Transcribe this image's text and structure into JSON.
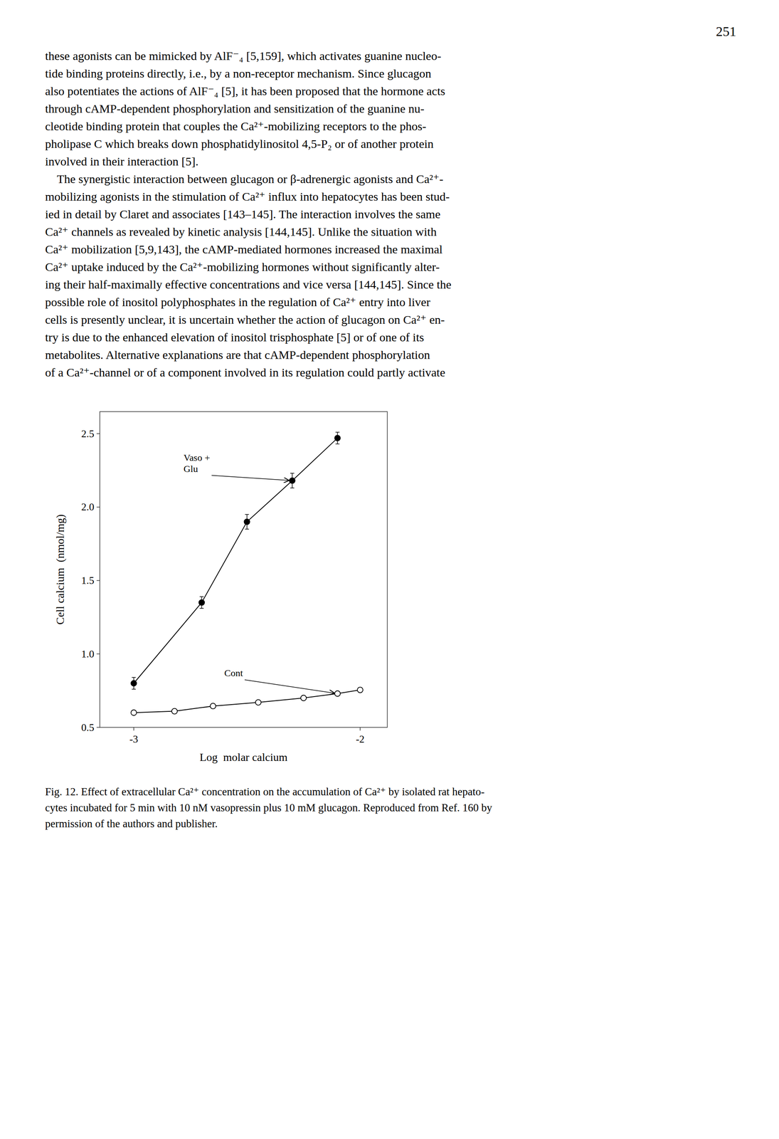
{
  "page_number": "251",
  "body_text": [
    "these agonists can be mimicked by AlF⁻₄ [5,159], which activates guanine nucleo-",
    "tide binding proteins directly, i.e., by a non-receptor mechanism. Since glucagon",
    "also potentiates the actions of AlF⁻₄ [5], it has been proposed that the hormone acts",
    "through cAMP-dependent phosphorylation and sensitization of the guanine nu-",
    "cleotide binding protein that couples the Ca²⁺-mobilizing receptors to the phos-",
    "pholipase C which breaks down phosphatidylinositol 4,5-P₂ or of another protein",
    "involved in their interaction [5].",
    "    The synergistic interaction between glucagon or β-adrenergic agonists and Ca²⁺-",
    "mobilizing agonists in the stimulation of Ca²⁺ influx into hepatocytes has been stud-",
    "ied in detail by Claret and associates [143–145]. The interaction involves the same",
    "Ca²⁺ channels as revealed by kinetic analysis [144,145]. Unlike the situation with",
    "Ca²⁺ mobilization [5,9,143], the cAMP-mediated hormones increased the maximal",
    "Ca²⁺ uptake induced by the Ca²⁺-mobilizing hormones without significantly alter-",
    "ing their half-maximally effective concentrations and vice versa [144,145]. Since the",
    "possible role of inositol polyphosphates in the regulation of Ca²⁺ entry into liver",
    "cells is presently unclear, it is uncertain whether the action of glucagon on Ca²⁺ en-",
    "try is due to the enhanced elevation of inositol trisphosphate [5] or of one of its",
    "metabolites. Alternative explanations are that cAMP-dependent phosphorylation",
    "of a Ca²⁺-channel or of a component involved in its regulation could partly activate"
  ],
  "caption": [
    "Fig. 12. Effect of extracellular Ca²⁺ concentration on the accumulation of Ca²⁺ by isolated rat hepato-",
    "cytes incubated for 5 min with 10 nM vasopressin plus 10 mM glucagon. Reproduced from Ref. 160 by",
    "permission of the authors and publisher."
  ],
  "chart_data": {
    "type": "line",
    "xlabel": "Log  molar calcium",
    "ylabel": "Cell calcium  (nmol/mg)",
    "xlim": [
      -3.15,
      -1.88
    ],
    "ylim": [
      0.5,
      2.65
    ],
    "xticks": [
      -3,
      -2
    ],
    "yticks": [
      0.5,
      {
        "value": 1.0,
        "label": "1.0"
      },
      1.5,
      {
        "value": 2.0,
        "label": "2.0"
      },
      2.5
    ],
    "grid": false,
    "series": [
      {
        "x": [
          -3.0,
          -2.7,
          -2.5,
          -2.3,
          -2.1
        ],
        "values": [
          0.8,
          1.35,
          1.9,
          2.18,
          2.47
        ],
        "errors": [
          0.04,
          0.04,
          0.05,
          0.05,
          0.04
        ],
        "color": "#000000",
        "marker": "filled-circle",
        "line_style": "solid"
      },
      {
        "x": [
          -3.0,
          -2.82,
          -2.65,
          -2.45,
          -2.25,
          -2.1,
          -2.0
        ],
        "values": [
          0.6,
          0.61,
          0.645,
          0.67,
          0.7,
          0.73,
          0.755
        ],
        "errors": [
          0.012,
          0.01,
          0.012,
          0.012,
          0.012,
          0.012,
          0.012
        ],
        "color": "#000000",
        "marker": "open-circle",
        "line_style": "solid"
      }
    ],
    "annotations": [
      {
        "text": "Vaso +\nGlu",
        "x": -2.3,
        "y": 2.18,
        "text_x": -2.78,
        "text_y": 2.3
      },
      {
        "text": "Cont",
        "x": -2.1,
        "y": 0.73,
        "text_x": -2.6,
        "text_y": 0.87
      }
    ]
  }
}
